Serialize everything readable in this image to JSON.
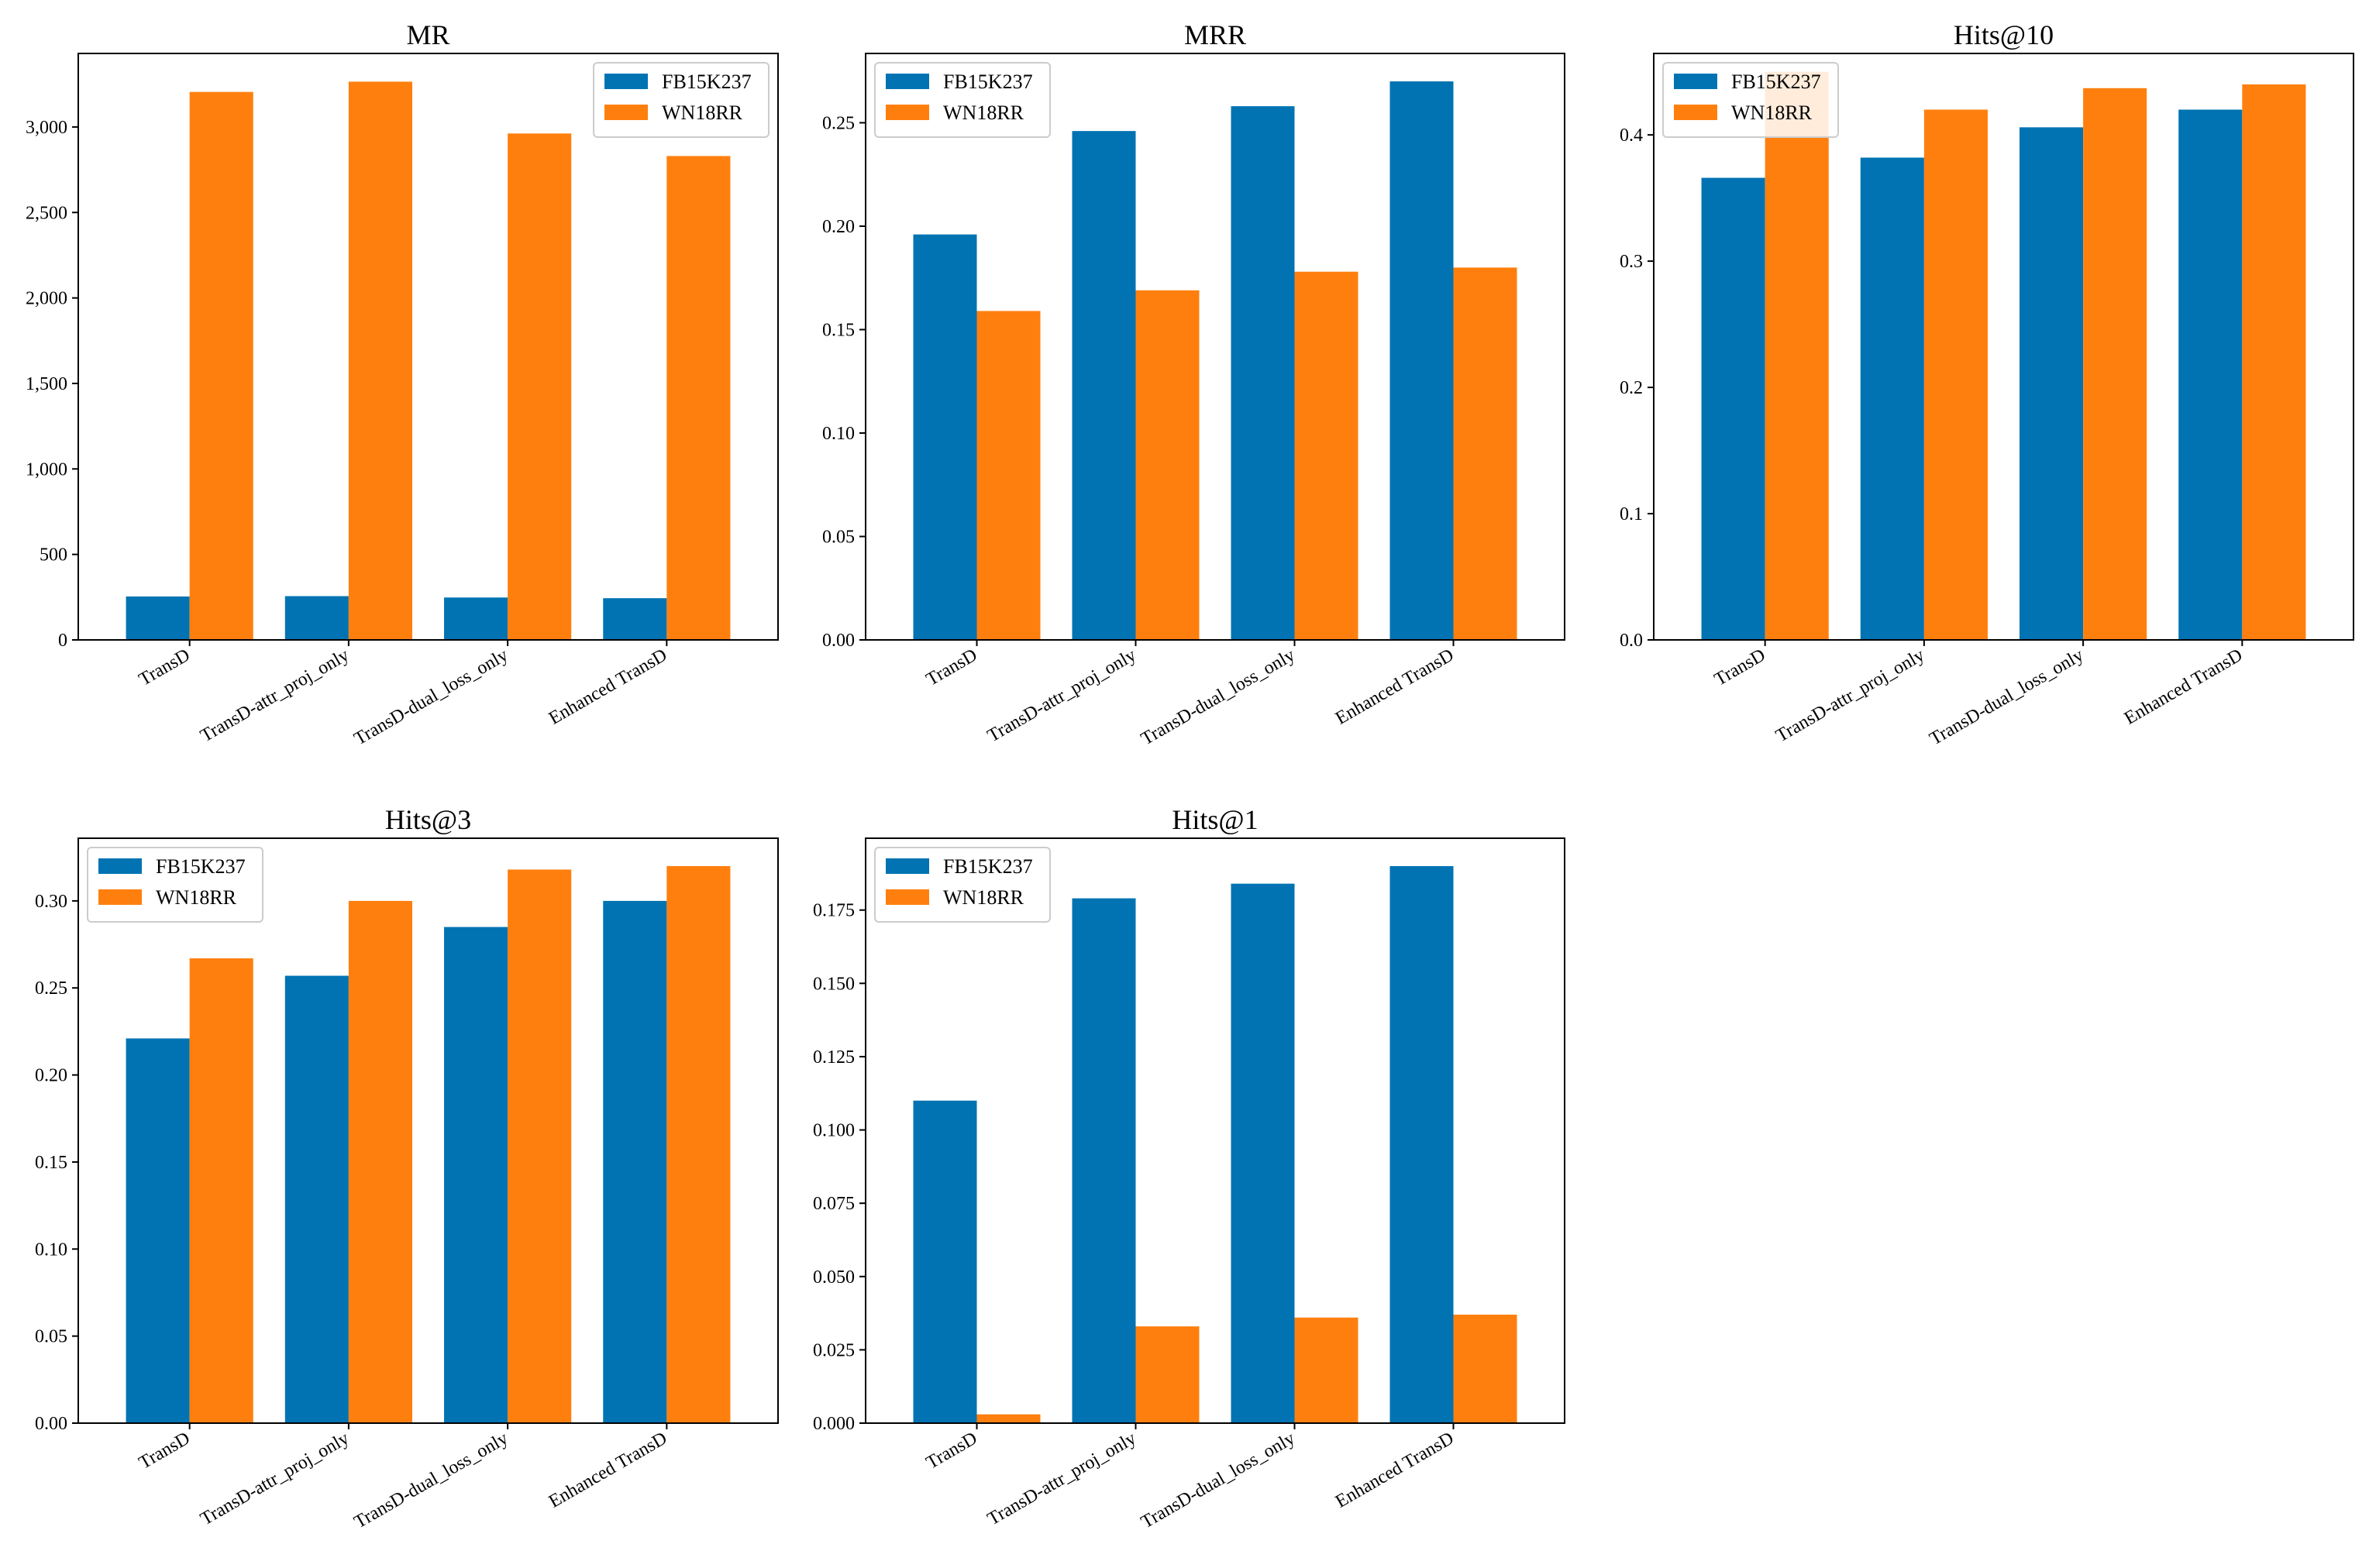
{
  "figure": {
    "series_names": [
      "FB15K237",
      "WN18RR"
    ],
    "colors": {
      "FB15K237": "#0173b2",
      "WN18RR": "#ff7f0e",
      "axis": "#000000"
    }
  },
  "chart_data": [
    {
      "type": "bar",
      "title": "MR",
      "categories": [
        "TransD",
        "TransD-attr_proj_only",
        "TransD-dual_loss_only",
        "Enhanced TransD"
      ],
      "series": [
        {
          "name": "FB15K237",
          "values": [
            254,
            256,
            248,
            244
          ]
        },
        {
          "name": "WN18RR",
          "values": [
            3205,
            3265,
            2962,
            2830
          ]
        }
      ],
      "xlabel": "",
      "ylabel": "",
      "ylim": [
        0,
        3430
      ],
      "yticks": [
        0,
        500,
        1000,
        1500,
        2000,
        2500,
        3000
      ],
      "ytick_labels": [
        "0",
        "500",
        "1,000",
        "1,500",
        "2,000",
        "2,500",
        "3,000"
      ],
      "legend": "top-right"
    },
    {
      "type": "bar",
      "title": "MRR",
      "categories": [
        "TransD",
        "TransD-attr_proj_only",
        "TransD-dual_loss_only",
        "Enhanced TransD"
      ],
      "series": [
        {
          "name": "FB15K237",
          "values": [
            0.196,
            0.246,
            0.258,
            0.27
          ]
        },
        {
          "name": "WN18RR",
          "values": [
            0.159,
            0.169,
            0.178,
            0.18
          ]
        }
      ],
      "xlabel": "",
      "ylabel": "",
      "ylim": [
        0,
        0.2835
      ],
      "yticks": [
        0.0,
        0.05,
        0.1,
        0.15,
        0.2,
        0.25
      ],
      "ytick_labels": [
        "0.00",
        "0.05",
        "0.10",
        "0.15",
        "0.20",
        "0.25"
      ],
      "legend": "top-left"
    },
    {
      "type": "bar",
      "title": "Hits@10",
      "categories": [
        "TransD",
        "TransD-attr_proj_only",
        "TransD-dual_loss_only",
        "Enhanced TransD"
      ],
      "series": [
        {
          "name": "FB15K237",
          "values": [
            0.366,
            0.382,
            0.406,
            0.42
          ]
        },
        {
          "name": "WN18RR",
          "values": [
            0.45,
            0.42,
            0.437,
            0.44
          ]
        }
      ],
      "xlabel": "",
      "ylabel": "",
      "ylim": [
        0,
        0.4645
      ],
      "yticks": [
        0.0,
        0.1,
        0.2,
        0.3,
        0.4
      ],
      "ytick_labels": [
        "0.0",
        "0.1",
        "0.2",
        "0.3",
        "0.4"
      ],
      "legend": "top-left"
    },
    {
      "type": "bar",
      "title": "Hits@3",
      "categories": [
        "TransD",
        "TransD-attr_proj_only",
        "TransD-dual_loss_only",
        "Enhanced TransD"
      ],
      "series": [
        {
          "name": "FB15K237",
          "values": [
            0.221,
            0.257,
            0.285,
            0.3
          ]
        },
        {
          "name": "WN18RR",
          "values": [
            0.267,
            0.3,
            0.318,
            0.32
          ]
        }
      ],
      "xlabel": "",
      "ylabel": "",
      "ylim": [
        0,
        0.336
      ],
      "yticks": [
        0.0,
        0.05,
        0.1,
        0.15,
        0.2,
        0.25,
        0.3
      ],
      "ytick_labels": [
        "0.00",
        "0.05",
        "0.10",
        "0.15",
        "0.20",
        "0.25",
        "0.30"
      ],
      "legend": "top-left"
    },
    {
      "type": "bar",
      "title": "Hits@1",
      "categories": [
        "TransD",
        "TransD-attr_proj_only",
        "TransD-dual_loss_only",
        "Enhanced TransD"
      ],
      "series": [
        {
          "name": "FB15K237",
          "values": [
            0.11,
            0.179,
            0.184,
            0.19
          ]
        },
        {
          "name": "WN18RR",
          "values": [
            0.003,
            0.033,
            0.036,
            0.037
          ]
        }
      ],
      "xlabel": "",
      "ylabel": "",
      "ylim": [
        0,
        0.1995
      ],
      "yticks": [
        0.0,
        0.025,
        0.05,
        0.075,
        0.1,
        0.125,
        0.15,
        0.175
      ],
      "ytick_labels": [
        "0.000",
        "0.025",
        "0.050",
        "0.075",
        "0.100",
        "0.125",
        "0.150",
        "0.175"
      ],
      "legend": "top-left"
    }
  ]
}
